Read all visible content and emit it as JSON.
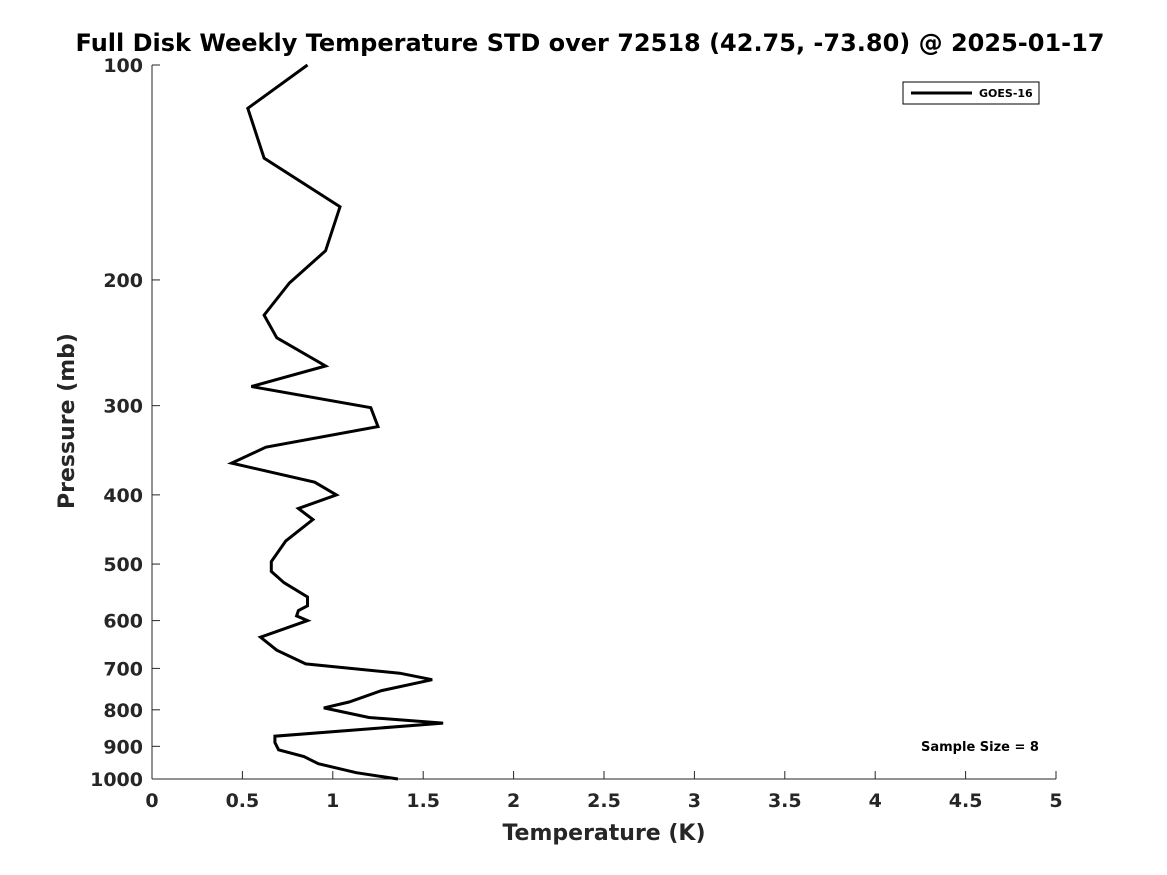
{
  "chart_data": {
    "type": "line",
    "title": "Full Disk Weekly Temperature STD over 72518 (42.75, -73.80) @ 2025-01-17",
    "xlabel": "Temperature (K)",
    "ylabel": "Pressure (mb)",
    "xlim": [
      0,
      5
    ],
    "ylim": [
      100,
      1000
    ],
    "y_scale": "log",
    "y_reversed": true,
    "x_ticks": [
      "0",
      "0.5",
      "1",
      "1.5",
      "2",
      "2.5",
      "3",
      "3.5",
      "4",
      "4.5",
      "5"
    ],
    "y_ticks": [
      "100",
      "200",
      "300",
      "400",
      "500",
      "600",
      "700",
      "800",
      "900",
      "1000"
    ],
    "grid": false,
    "legend": {
      "location": "top-right",
      "entries": [
        "GOES-16"
      ]
    },
    "annotation": "Sample Size = 8",
    "series": [
      {
        "name": "GOES-16",
        "color": "#000000",
        "points": [
          [
            0.86,
            100
          ],
          [
            0.53,
            115
          ],
          [
            0.62,
            135
          ],
          [
            1.04,
            158
          ],
          [
            0.96,
            182
          ],
          [
            0.76,
            202
          ],
          [
            0.62,
            224
          ],
          [
            0.69,
            241
          ],
          [
            0.96,
            264
          ],
          [
            0.55,
            282
          ],
          [
            1.21,
            302
          ],
          [
            1.25,
            321
          ],
          [
            0.63,
            343
          ],
          [
            0.44,
            361
          ],
          [
            0.9,
            384
          ],
          [
            1.02,
            400
          ],
          [
            0.81,
            418
          ],
          [
            0.89,
            433
          ],
          [
            0.74,
            464
          ],
          [
            0.66,
            496
          ],
          [
            0.66,
            512
          ],
          [
            0.73,
            531
          ],
          [
            0.86,
            556
          ],
          [
            0.86,
            572
          ],
          [
            0.81,
            581
          ],
          [
            0.8,
            591
          ],
          [
            0.86,
            600
          ],
          [
            0.6,
            633
          ],
          [
            0.69,
            660
          ],
          [
            0.85,
            690
          ],
          [
            1.37,
            711
          ],
          [
            1.55,
            726
          ],
          [
            1.27,
            752
          ],
          [
            1.09,
            780
          ],
          [
            0.95,
            795
          ],
          [
            1.2,
            820
          ],
          [
            1.61,
            835
          ],
          [
            0.68,
            871
          ],
          [
            0.68,
            889
          ],
          [
            0.7,
            910
          ],
          [
            0.84,
            930
          ],
          [
            0.92,
            952
          ],
          [
            1.13,
            980
          ],
          [
            1.36,
            1000
          ]
        ]
      }
    ]
  }
}
